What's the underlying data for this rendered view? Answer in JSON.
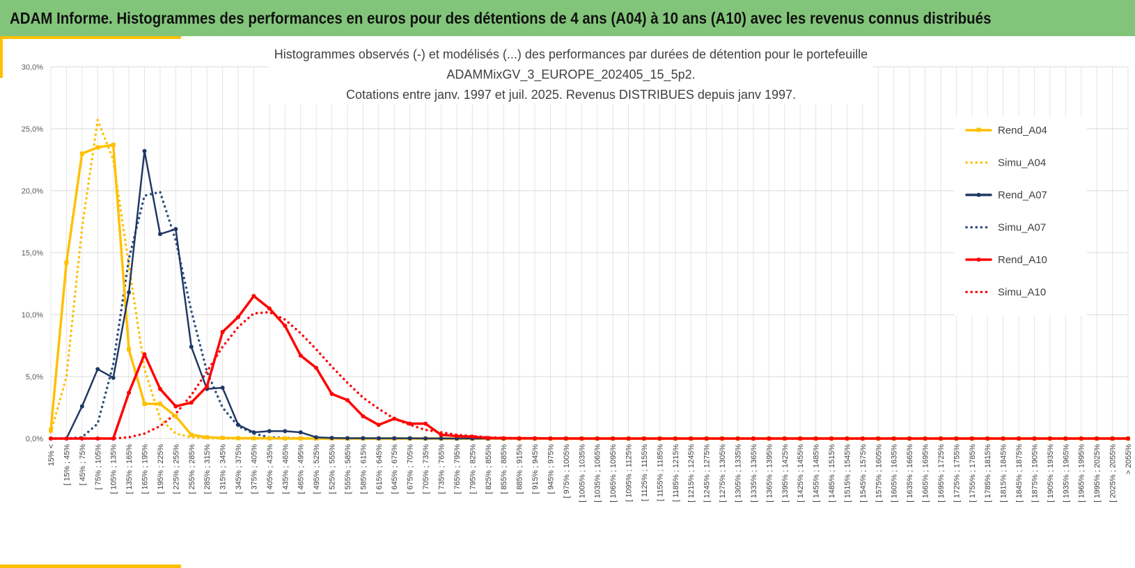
{
  "header": {
    "title": "ADAM Informe. Histogrammes des performances en euros pour des détentions de 4 ans (A04) à 10 ans (A10) avec les revenus connus distribués"
  },
  "colors": {
    "banner": "#82c57a",
    "a04": "#ffc000",
    "a07_obs": "#1f3864",
    "a07_sim": "#2e4e7e",
    "a10": "#ff0000",
    "corner_accent": "#ffc000"
  },
  "chart_data": {
    "type": "line",
    "title_lines": [
      "Histogrammes observés (-) et modélisés (...) des performances par durées de détention pour  le portefeuille",
      "ADAMMixGV_3_EUROPE_202405_15_5p2.",
      "Cotations entre janv. 1997 et juil. 2025. Revenus DISTRIBUES depuis janv 1997."
    ],
    "ylim": [
      0,
      30
    ],
    "yticks": [
      "0,0%",
      "5,0%",
      "10,0%",
      "15,0%",
      "20,0%",
      "25,0%",
      "30,0%"
    ],
    "grid": true,
    "legend_position": "right",
    "categories": [
      "15% <",
      "[ 15% ; 45%",
      "[ 45% ; 75%",
      "[ 75% ; 105%",
      "[ 105% ; 135%",
      "[ 135% ; 165%",
      "[ 165% ; 195%",
      "[ 195% ; 225%",
      "[ 225% ; 255%",
      "[ 255% ; 285%",
      "[ 285% ; 315%",
      "[ 315% ; 345%",
      "[ 345% ; 375%",
      "[ 375% ; 405%",
      "[ 405% ; 435%",
      "[ 435% ; 465%",
      "[ 465% ; 495%",
      "[ 495% ; 525%",
      "[ 525% ; 555%",
      "[ 555% ; 585%",
      "[ 585% ; 615%",
      "[ 615% ; 645%",
      "[ 645% ; 675%",
      "[ 675% ; 705%",
      "[ 705% ; 735%",
      "[ 735% ; 765%",
      "[ 765% ; 795%",
      "[ 795% ; 825%",
      "[ 825% ; 855%",
      "[ 855% ; 885%",
      "[ 885% ; 915%",
      "[ 915% ; 945%",
      "[ 945% ; 975%",
      "[ 975% ; 1005%",
      "[ 1005% ; 1035%",
      "[ 1035% ; 1065%",
      "[ 1065% ; 1095%",
      "[ 1095% ; 1125%",
      "[ 1125% ; 1155%",
      "[ 1155% ; 1185%",
      "[ 1185% ; 1215%",
      "[ 1215% ; 1245%",
      "[ 1245% ; 1275%",
      "[ 1275% ; 1305%",
      "[ 1305% ; 1335%",
      "[ 1335% ; 1365%",
      "[ 1365% ; 1395%",
      "[ 1395% ; 1425%",
      "[ 1425% ; 1455%",
      "[ 1455% ; 1485%",
      "[ 1485% ; 1515%",
      "[ 1515% ; 1545%",
      "[ 1545% ; 1575%",
      "[ 1575% ; 1605%",
      "[ 1605% ; 1635%",
      "[ 1635% ; 1665%",
      "[ 1665% ; 1695%",
      "[ 1695% ; 1725%",
      "[ 1725% ; 1755%",
      "[ 1755% ; 1785%",
      "[ 1785% ; 1815%",
      "[ 1815% ; 1845%",
      "[ 1845% ; 1875%",
      "[ 1875% ; 1905%",
      "[ 1905% ; 1935%",
      "[ 1935% ; 1965%",
      "[ 1965% ; 1995%",
      "[ 1995% ; 2025%",
      "[ 2025% ; 2055%",
      "> 2055%"
    ],
    "series": [
      {
        "name": "Rend_A04",
        "style": "solid",
        "color": "#ffc000",
        "values": [
          0.7,
          14.2,
          23.0,
          23.5,
          23.7,
          7.2,
          2.8,
          2.8,
          1.8,
          0.3,
          0.1,
          0.05,
          0.03,
          0.02,
          0.02,
          0.01,
          0.01,
          0,
          0,
          0,
          0,
          0,
          0,
          0,
          0,
          0,
          0,
          0,
          0,
          0,
          0,
          0,
          0,
          0,
          0,
          0,
          0,
          0,
          0,
          0,
          0,
          0,
          0,
          0,
          0,
          0,
          0,
          0,
          0,
          0,
          0,
          0,
          0,
          0,
          0,
          0,
          0,
          0,
          0,
          0,
          0,
          0,
          0,
          0,
          0,
          0,
          0,
          0,
          0,
          0
        ]
      },
      {
        "name": "Simu_A04",
        "style": "dotted",
        "color": "#ffc000",
        "values": [
          0.5,
          5.0,
          17.0,
          25.7,
          22.5,
          14.0,
          5.6,
          1.6,
          0.4,
          0.1,
          0.02,
          0,
          0,
          0,
          0,
          0,
          0,
          0,
          0,
          0,
          0,
          0,
          0,
          0,
          0,
          0,
          0,
          0,
          0,
          0,
          0,
          0,
          0,
          0,
          0,
          0,
          0,
          0,
          0,
          0,
          0,
          0,
          0,
          0,
          0,
          0,
          0,
          0,
          0,
          0,
          0,
          0,
          0,
          0,
          0,
          0,
          0,
          0,
          0,
          0,
          0,
          0,
          0,
          0,
          0,
          0,
          0,
          0,
          0,
          0
        ]
      },
      {
        "name": "Rend_A07",
        "style": "solid",
        "color": "#1f3864",
        "values": [
          0,
          0,
          2.6,
          5.6,
          4.9,
          11.8,
          23.2,
          16.5,
          16.9,
          7.4,
          4.0,
          4.1,
          1.1,
          0.5,
          0.6,
          0.6,
          0.5,
          0.1,
          0.05,
          0.03,
          0.03,
          0.02,
          0.02,
          0.02,
          0.01,
          0.01,
          0,
          0,
          0,
          0,
          0,
          0,
          0,
          0,
          0,
          0,
          0,
          0,
          0,
          0,
          0,
          0,
          0,
          0,
          0,
          0,
          0,
          0,
          0,
          0,
          0,
          0,
          0,
          0,
          0,
          0,
          0,
          0,
          0,
          0,
          0,
          0,
          0,
          0,
          0,
          0,
          0,
          0,
          0,
          0
        ]
      },
      {
        "name": "Simu_A07",
        "style": "dotted",
        "color": "#2e4e7e",
        "values": [
          0,
          0,
          0.1,
          1.2,
          6.0,
          14.5,
          19.6,
          19.9,
          16.0,
          10.3,
          5.4,
          2.5,
          1.0,
          0.4,
          0.1,
          0.05,
          0.02,
          0,
          0,
          0,
          0,
          0,
          0,
          0,
          0,
          0,
          0,
          0,
          0,
          0,
          0,
          0,
          0,
          0,
          0,
          0,
          0,
          0,
          0,
          0,
          0,
          0,
          0,
          0,
          0,
          0,
          0,
          0,
          0,
          0,
          0,
          0,
          0,
          0,
          0,
          0,
          0,
          0,
          0,
          0,
          0,
          0,
          0,
          0,
          0,
          0,
          0,
          0,
          0,
          0
        ]
      },
      {
        "name": "Rend_A10",
        "style": "solid",
        "color": "#ff0000",
        "values": [
          0,
          0,
          0,
          0,
          0,
          3.7,
          6.8,
          4.0,
          2.6,
          2.9,
          4.2,
          8.6,
          9.8,
          11.5,
          10.5,
          9.1,
          6.7,
          5.7,
          3.6,
          3.1,
          1.8,
          1.1,
          1.6,
          1.2,
          1.2,
          0.3,
          0.2,
          0.15,
          0.05,
          0.03,
          0.02,
          0.02,
          0.01,
          0.01,
          0,
          0,
          0,
          0,
          0,
          0,
          0,
          0,
          0,
          0,
          0,
          0,
          0,
          0,
          0,
          0,
          0,
          0,
          0,
          0,
          0,
          0,
          0,
          0,
          0,
          0,
          0,
          0,
          0,
          0,
          0,
          0,
          0,
          0,
          0,
          0
        ]
      },
      {
        "name": "Simu_A10",
        "style": "dotted",
        "color": "#ff0000",
        "values": [
          0,
          0,
          0,
          0,
          0,
          0.1,
          0.4,
          1.0,
          2.0,
          3.5,
          5.4,
          7.4,
          9.0,
          10.1,
          10.2,
          9.6,
          8.5,
          7.2,
          5.8,
          4.5,
          3.3,
          2.4,
          1.6,
          1.1,
          0.7,
          0.5,
          0.3,
          0.2,
          0.1,
          0.05,
          0.03,
          0.02,
          0.01,
          0,
          0,
          0,
          0,
          0,
          0,
          0,
          0,
          0,
          0,
          0,
          0,
          0,
          0,
          0,
          0,
          0,
          0,
          0,
          0,
          0,
          0,
          0,
          0,
          0,
          0,
          0,
          0,
          0,
          0,
          0,
          0,
          0,
          0,
          0,
          0,
          0
        ]
      }
    ]
  }
}
